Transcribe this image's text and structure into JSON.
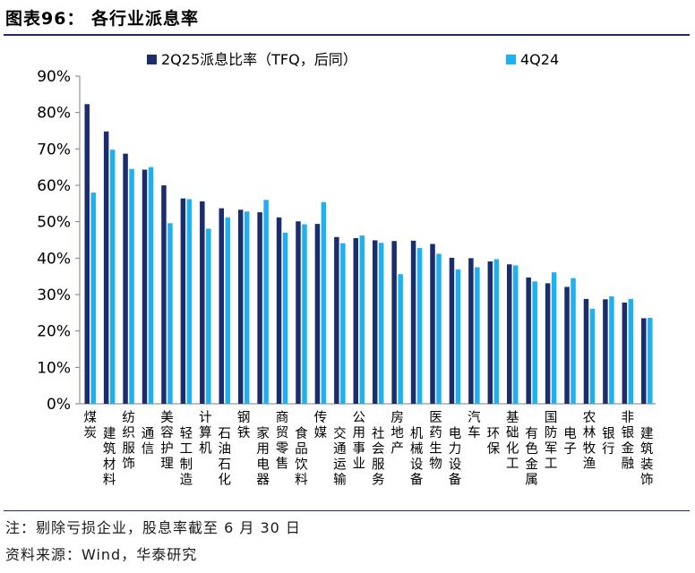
{
  "header": {
    "title": "图表96：  各行业派息率"
  },
  "footer": {
    "note": "注：剔除亏损企业，股息率截至 6 月 30 日",
    "source": "资料来源：Wind，华泰研究"
  },
  "colors": {
    "series1": "#1c2d6e",
    "series2": "#1fb0ef",
    "rule": "#1c2d6e"
  },
  "chart_data": {
    "type": "bar",
    "title": "",
    "xlabel": "",
    "ylabel": "",
    "ylim": [
      0,
      90
    ],
    "yticks": [
      "0%",
      "10%",
      "20%",
      "30%",
      "40%",
      "50%",
      "60%",
      "70%",
      "80%",
      "90%"
    ],
    "grid": false,
    "legend_position": "top",
    "categories": [
      "煤炭",
      "建筑材料",
      "纺织服饰",
      "通信",
      "美容护理",
      "轻工制造",
      "计算机",
      "石油石化",
      "钢铁",
      "家用电器",
      "商贸零售",
      "食品饮料",
      "传媒",
      "交通运输",
      "公用事业",
      "社会服务",
      "房地产",
      "机械设备",
      "医药生物",
      "电力设备",
      "汽车",
      "环保",
      "基础化工",
      "有色金属",
      "国防军工",
      "电子",
      "农林牧渔",
      "银行",
      "非银金融",
      "建筑装饰"
    ],
    "series": [
      {
        "name": "2Q25派息比率（TFQ，后同）",
        "values": [
          82.3,
          74.8,
          68.7,
          64.3,
          60.0,
          56.4,
          55.6,
          53.7,
          53.3,
          52.6,
          51.2,
          50.1,
          49.4,
          45.8,
          45.5,
          44.9,
          44.7,
          44.8,
          43.9,
          40.1,
          40.0,
          39.1,
          38.3,
          34.7,
          33.1,
          32.1,
          28.8,
          28.7,
          27.8,
          23.5
        ]
      },
      {
        "name": "4Q24",
        "values": [
          58.0,
          69.8,
          64.5,
          65.0,
          49.6,
          56.2,
          48.1,
          51.2,
          52.8,
          56.0,
          47.0,
          49.3,
          55.4,
          44.1,
          46.2,
          44.2,
          35.6,
          42.8,
          41.2,
          36.9,
          37.5,
          39.7,
          38.0,
          33.6,
          36.1,
          34.5,
          26.1,
          29.5,
          28.8,
          23.6
        ]
      }
    ]
  }
}
